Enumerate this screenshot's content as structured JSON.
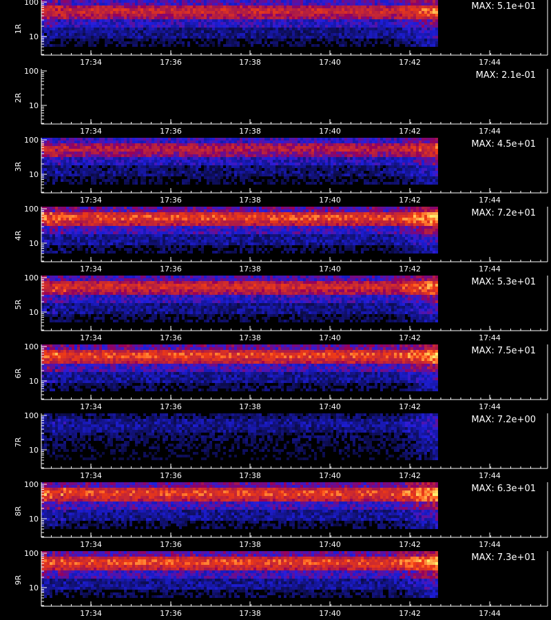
{
  "chart_data": [
    {
      "type": "heatmap",
      "panel_label": "1R",
      "max_label": "MAX: 5.1e+01",
      "max_value": 51,
      "has_data": true,
      "x_tick_labels": [
        "17:34",
        "17:36",
        "17:38",
        "17:40",
        "17:42",
        "17:44"
      ],
      "y_tick_labels": [
        "100",
        "10"
      ],
      "y_scale": "log",
      "ylim": [
        3,
        110
      ]
    },
    {
      "type": "heatmap",
      "panel_label": "2R",
      "max_label": "MAX: 2.1e-01",
      "max_value": 0.21,
      "has_data": false,
      "x_tick_labels": [
        "17:34",
        "17:36",
        "17:38",
        "17:40",
        "17:42",
        "17:44"
      ],
      "y_tick_labels": [
        "100",
        "10"
      ],
      "y_scale": "log",
      "ylim": [
        3,
        110
      ]
    },
    {
      "type": "heatmap",
      "panel_label": "3R",
      "max_label": "MAX: 4.5e+01",
      "max_value": 45,
      "has_data": true,
      "x_tick_labels": [
        "17:34",
        "17:36",
        "17:38",
        "17:40",
        "17:42",
        "17:44"
      ],
      "y_tick_labels": [
        "100",
        "10"
      ],
      "y_scale": "log",
      "ylim": [
        3,
        110
      ]
    },
    {
      "type": "heatmap",
      "panel_label": "4R",
      "max_label": "MAX: 7.2e+01",
      "max_value": 72,
      "has_data": true,
      "x_tick_labels": [
        "17:34",
        "17:36",
        "17:38",
        "17:40",
        "17:42",
        "17:44"
      ],
      "y_tick_labels": [
        "100",
        "10"
      ],
      "y_scale": "log",
      "ylim": [
        3,
        110
      ]
    },
    {
      "type": "heatmap",
      "panel_label": "5R",
      "max_label": "MAX: 5.3e+01",
      "max_value": 53,
      "has_data": true,
      "x_tick_labels": [
        "17:34",
        "17:36",
        "17:38",
        "17:40",
        "17:42",
        "17:44"
      ],
      "y_tick_labels": [
        "100",
        "10"
      ],
      "y_scale": "log",
      "ylim": [
        3,
        110
      ]
    },
    {
      "type": "heatmap",
      "panel_label": "6R",
      "max_label": "MAX: 7.5e+01",
      "max_value": 75,
      "has_data": true,
      "x_tick_labels": [
        "17:34",
        "17:36",
        "17:38",
        "17:40",
        "17:42",
        "17:44"
      ],
      "y_tick_labels": [
        "100",
        "10"
      ],
      "y_scale": "log",
      "ylim": [
        3,
        110
      ]
    },
    {
      "type": "heatmap",
      "panel_label": "7R",
      "max_label": "MAX: 7.2e+00",
      "max_value": 7.2,
      "has_data": true,
      "x_tick_labels": [
        "17:34",
        "17:36",
        "17:38",
        "17:40",
        "17:42",
        "17:44"
      ],
      "y_tick_labels": [
        "100",
        "10"
      ],
      "y_scale": "log",
      "ylim": [
        3,
        110
      ]
    },
    {
      "type": "heatmap",
      "panel_label": "8R",
      "max_label": "MAX: 6.3e+01",
      "max_value": 63,
      "has_data": true,
      "x_tick_labels": [
        "17:34",
        "17:36",
        "17:38",
        "17:40",
        "17:42",
        "17:44"
      ],
      "y_tick_labels": [
        "100",
        "10"
      ],
      "y_scale": "log",
      "ylim": [
        3,
        110
      ]
    },
    {
      "type": "heatmap",
      "panel_label": "9R",
      "max_label": "MAX: 7.3e+01",
      "max_value": 73,
      "has_data": true,
      "x_tick_labels": [
        "17:34",
        "17:36",
        "17:38",
        "17:40",
        "17:42",
        "17:44"
      ],
      "y_tick_labels": [
        "100",
        "10"
      ],
      "y_scale": "log",
      "ylim": [
        3,
        110
      ]
    }
  ],
  "palette": {
    "background": "#000000",
    "axis": "#ffffff",
    "low": "#1010c8",
    "mid": "#c81e1e",
    "high": "#ffc832"
  }
}
